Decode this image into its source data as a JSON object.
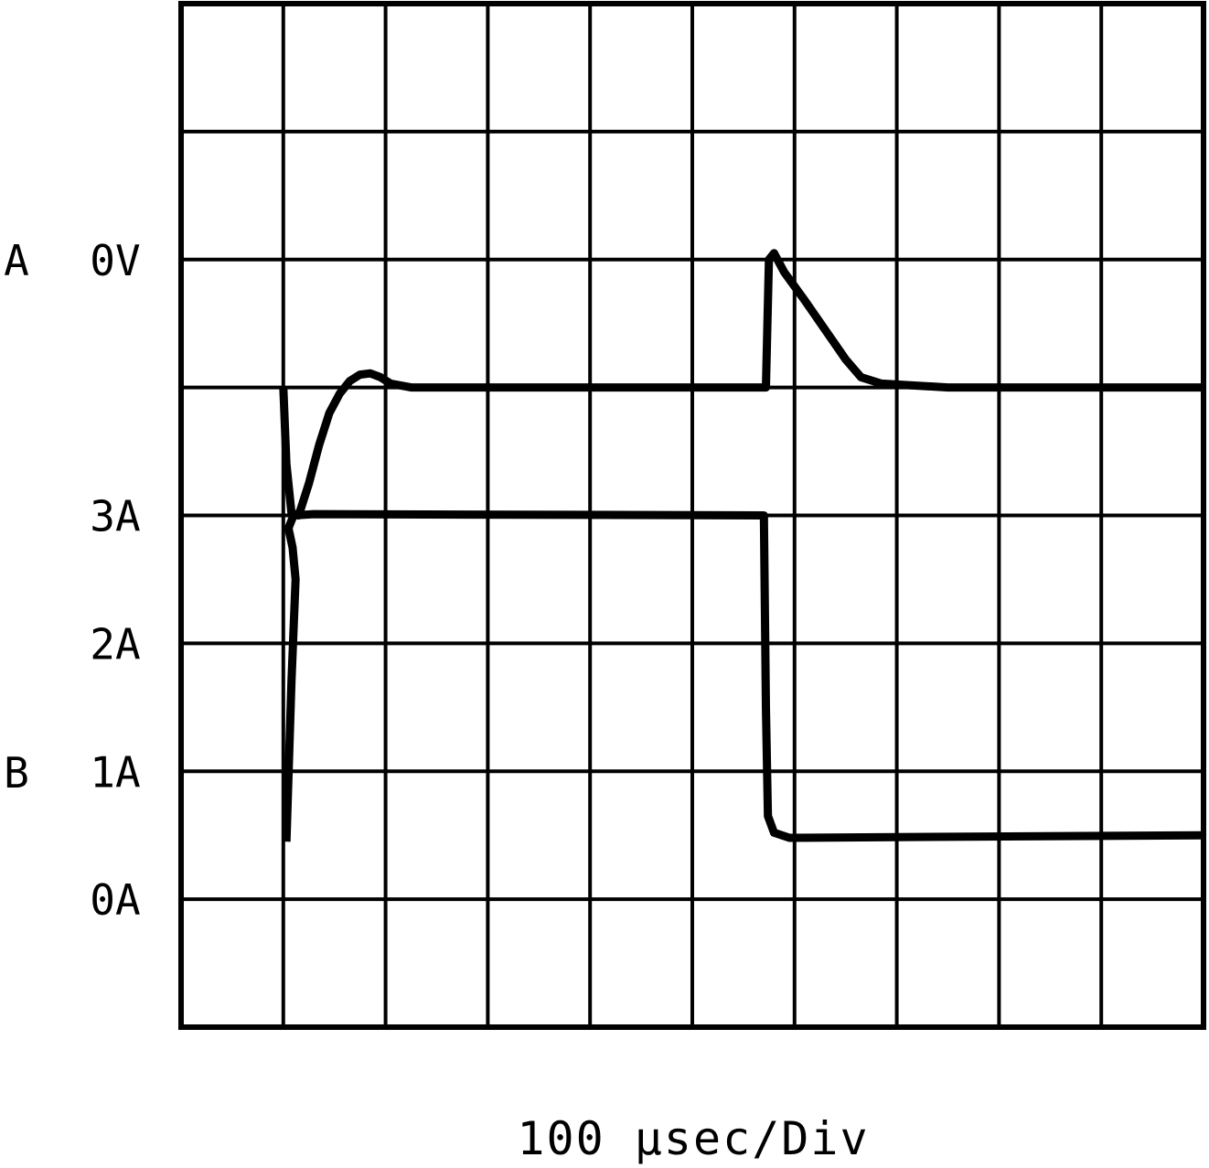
{
  "chart_data": {
    "type": "line",
    "grid": true,
    "divisions": {
      "x": 10,
      "y": 8
    },
    "xlabel": "100 µsec/Div",
    "x_units": "div",
    "x_range": [
      0,
      10
    ],
    "channels": [
      {
        "name": "A",
        "marker": "A",
        "reference_label": "0V",
        "y_units": "div",
        "y_range": [
          -5,
          3
        ],
        "series": [
          {
            "x": 1.0,
            "y": 0.0
          },
          {
            "x": 1.03,
            "y": -0.6
          },
          {
            "x": 1.08,
            "y": -0.98
          },
          {
            "x": 1.15,
            "y": -1.0
          },
          {
            "x": 1.25,
            "y": -0.75
          },
          {
            "x": 1.35,
            "y": -0.45
          },
          {
            "x": 1.45,
            "y": -0.2
          },
          {
            "x": 1.55,
            "y": -0.05
          },
          {
            "x": 1.65,
            "y": 0.05
          },
          {
            "x": 1.75,
            "y": 0.1
          },
          {
            "x": 1.85,
            "y": 0.11
          },
          {
            "x": 1.95,
            "y": 0.08
          },
          {
            "x": 2.05,
            "y": 0.03
          },
          {
            "x": 2.25,
            "y": 0.0
          },
          {
            "x": 5.65,
            "y": 0.0
          },
          {
            "x": 5.72,
            "y": 0.0
          },
          {
            "x": 5.75,
            "y": 1.0
          },
          {
            "x": 5.8,
            "y": 1.05
          },
          {
            "x": 5.9,
            "y": 0.9
          },
          {
            "x": 6.1,
            "y": 0.68
          },
          {
            "x": 6.5,
            "y": 0.22
          },
          {
            "x": 6.65,
            "y": 0.08
          },
          {
            "x": 6.85,
            "y": 0.03
          },
          {
            "x": 7.5,
            "y": 0.0
          },
          {
            "x": 10.0,
            "y": 0.0
          }
        ]
      },
      {
        "name": "B",
        "marker": "B",
        "y_units": "A",
        "ticks": [
          {
            "label": "3A",
            "value": 3
          },
          {
            "label": "2A",
            "value": 2
          },
          {
            "label": "1A",
            "value": 1
          },
          {
            "label": "0A",
            "value": 0
          }
        ],
        "series": [
          {
            "x": 1.03,
            "y": 0.45
          },
          {
            "x": 1.08,
            "y": 1.7
          },
          {
            "x": 1.12,
            "y": 2.5
          },
          {
            "x": 1.09,
            "y": 2.75
          },
          {
            "x": 1.05,
            "y": 2.9
          },
          {
            "x": 1.1,
            "y": 3.0
          },
          {
            "x": 1.3,
            "y": 3.01
          },
          {
            "x": 5.7,
            "y": 3.0
          },
          {
            "x": 5.72,
            "y": 1.5
          },
          {
            "x": 5.74,
            "y": 0.65
          },
          {
            "x": 5.8,
            "y": 0.52
          },
          {
            "x": 5.95,
            "y": 0.48
          },
          {
            "x": 10.0,
            "y": 0.5
          }
        ]
      }
    ]
  }
}
